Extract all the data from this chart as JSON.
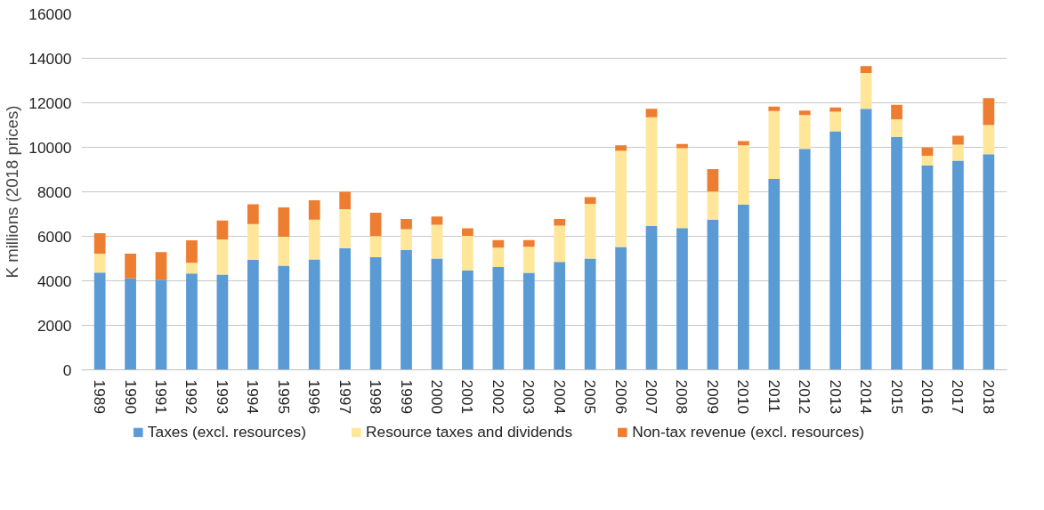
{
  "chart_data": {
    "type": "bar",
    "stacked": true,
    "ylabel": "K millions (2018 prices)",
    "categories": [
      "1989",
      "1990",
      "1991",
      "1992",
      "1993",
      "1994",
      "1995",
      "1996",
      "1997",
      "1998",
      "1999",
      "2000",
      "2001",
      "2002",
      "2003",
      "2004",
      "2005",
      "2006",
      "2007",
      "2008",
      "2009",
      "2010",
      "2011",
      "2012",
      "2013",
      "2014",
      "2015",
      "2016",
      "2017",
      "2018"
    ],
    "series": [
      {
        "name": "Taxes (excl. resources)",
        "color": "#5b9bd5",
        "values": [
          4370,
          4110,
          4050,
          4330,
          4280,
          4940,
          4680,
          4960,
          5470,
          5060,
          5380,
          5000,
          4470,
          4620,
          4360,
          4850,
          5000,
          5520,
          6460,
          6370,
          6750,
          7420,
          8580,
          9930,
          10720,
          11730,
          10470,
          9180,
          9400,
          9690
        ]
      },
      {
        "name": "Resource taxes and dividends",
        "color": "#ffe699",
        "values": [
          850,
          0,
          0,
          480,
          1580,
          1610,
          1300,
          1790,
          1750,
          950,
          940,
          1520,
          1550,
          870,
          1170,
          1630,
          2460,
          4320,
          4890,
          3590,
          1260,
          2670,
          3050,
          1520,
          880,
          1610,
          790,
          440,
          720,
          1310
        ]
      },
      {
        "name": "Non-tax revenue (excl. resources)",
        "color": "#ed7d31",
        "values": [
          920,
          1110,
          1240,
          1010,
          850,
          890,
          1320,
          870,
          780,
          1050,
          460,
          370,
          340,
          340,
          300,
          300,
          300,
          250,
          380,
          190,
          1010,
          190,
          200,
          200,
          190,
          310,
          650,
          370,
          400,
          1210
        ]
      }
    ],
    "ylim": [
      0,
      16000
    ],
    "yticks": [
      0,
      2000,
      4000,
      6000,
      8000,
      10000,
      12000,
      14000,
      16000
    ],
    "grid": "y",
    "legend": "bottom"
  }
}
